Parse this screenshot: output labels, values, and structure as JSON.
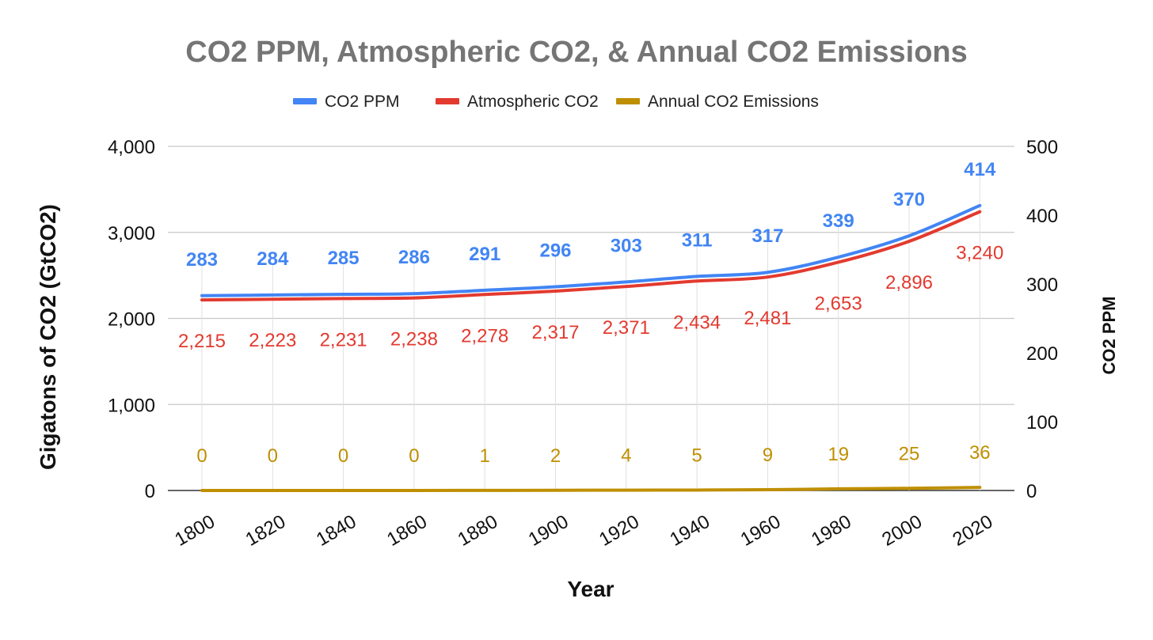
{
  "chart_data": {
    "type": "line",
    "title": "CO2 PPM, Atmospheric CO2, & Annual CO2 Emissions",
    "xlabel": "Year",
    "ylabel": "Gigatons of CO2 (GtCO2)",
    "ylabel_right": "CO2 PPM",
    "ylim": [
      0,
      4000
    ],
    "ylim_right": [
      0,
      500
    ],
    "yticks": [
      "0",
      "1,000",
      "2,000",
      "3,000",
      "4,000"
    ],
    "yticks_right": [
      "0",
      "100",
      "200",
      "300",
      "400",
      "500"
    ],
    "categories": [
      "1800",
      "1820",
      "1840",
      "1860",
      "1880",
      "1900",
      "1920",
      "1940",
      "1960",
      "1980",
      "2000",
      "2020"
    ],
    "grid": true,
    "legend_position": "top",
    "series": [
      {
        "name": "CO2 PPM",
        "axis": "right",
        "color": "#4285f4",
        "values": [
          283,
          284,
          285,
          286,
          291,
          296,
          303,
          311,
          317,
          339,
          370,
          414
        ],
        "labels": [
          "283",
          "284",
          "285",
          "286",
          "291",
          "296",
          "303",
          "311",
          "317",
          "339",
          "370",
          "414"
        ]
      },
      {
        "name": "Atmospheric CO2",
        "axis": "left",
        "color": "#e33a2f",
        "values": [
          2215,
          2223,
          2231,
          2238,
          2278,
          2317,
          2371,
          2434,
          2481,
          2653,
          2896,
          3240
        ],
        "labels": [
          "2,215",
          "2,223",
          "2,231",
          "2,238",
          "2,278",
          "2,317",
          "2,371",
          "2,434",
          "2,481",
          "2,653",
          "2,896",
          "3,240"
        ]
      },
      {
        "name": "Annual CO2 Emissions",
        "axis": "left",
        "color": "#bf8f00",
        "values": [
          0,
          0,
          0,
          0,
          1,
          2,
          4,
          5,
          9,
          19,
          25,
          36
        ],
        "labels": [
          "0",
          "0",
          "0",
          "0",
          "1",
          "2",
          "4",
          "5",
          "9",
          "19",
          "25",
          "36"
        ]
      }
    ]
  }
}
